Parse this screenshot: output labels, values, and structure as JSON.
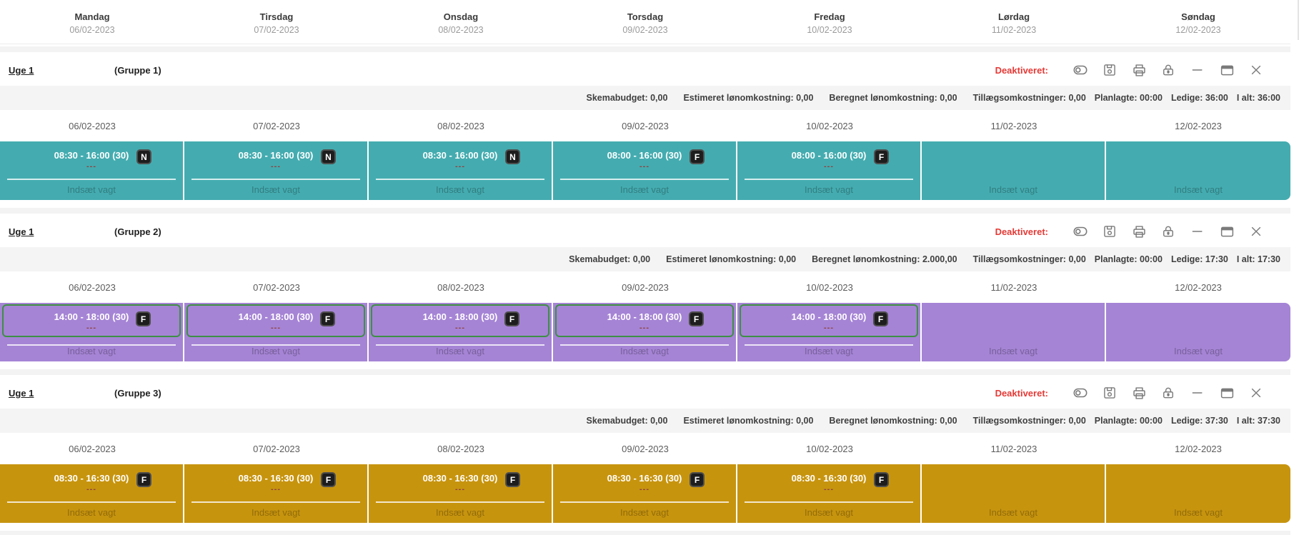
{
  "colors": {
    "group1_band": "#44acb0",
    "group2_band": "#a584d5",
    "group3_band": "#c7940e",
    "card_border_green": "#3e8f44",
    "status_red": "#e53935",
    "icon_gray": "#7a7a7a"
  },
  "day_header": {
    "days": [
      {
        "name": "Mandag",
        "date": "06/02-2023"
      },
      {
        "name": "Tirsdag",
        "date": "07/02-2023"
      },
      {
        "name": "Onsdag",
        "date": "08/02-2023"
      },
      {
        "name": "Torsdag",
        "date": "09/02-2023"
      },
      {
        "name": "Fredag",
        "date": "10/02-2023"
      },
      {
        "name": "Lørdag",
        "date": "11/02-2023"
      },
      {
        "name": "Søndag",
        "date": "12/02-2023"
      }
    ]
  },
  "header_icons": [
    {
      "name": "toggle-icon"
    },
    {
      "name": "save-icon"
    },
    {
      "name": "print-icon"
    },
    {
      "name": "lock-icon"
    },
    {
      "name": "minimize-icon"
    },
    {
      "name": "window-icon"
    },
    {
      "name": "close-icon"
    }
  ],
  "groups": [
    {
      "week_label": "Uge 1",
      "group_label": "(Gruppe 1)",
      "status_label": "Deaktiveret:",
      "band_color": "#44acb0",
      "budget_items": [
        "Skemabudget: 0,00",
        "Estimeret lønomkostning: 0,00",
        "Beregnet lønomkostning: 0,00",
        "Tillægsomkostninger: 0,00",
        "Planlagte: 00:00",
        "Ledige: 36:00",
        "I alt: 36:00"
      ],
      "dates": [
        "06/02-2023",
        "07/02-2023",
        "08/02-2023",
        "09/02-2023",
        "10/02-2023",
        "11/02-2023",
        "12/02-2023"
      ],
      "cells": [
        {
          "time": "08:30 - 16:00 (30)",
          "badge": "N",
          "dots": "---",
          "insert_label": "Indsæt vagt"
        },
        {
          "time": "08:30 - 16:00 (30)",
          "badge": "N",
          "dots": "---",
          "insert_label": "Indsæt vagt"
        },
        {
          "time": "08:30 - 16:00 (30)",
          "badge": "N",
          "dots": "---",
          "insert_label": "Indsæt vagt"
        },
        {
          "time": "08:00 - 16:00 (30)",
          "badge": "F",
          "dots": "---",
          "insert_label": "Indsæt vagt"
        },
        {
          "time": "08:00 - 16:00 (30)",
          "badge": "F",
          "dots": "---",
          "insert_label": "Indsæt vagt"
        },
        {
          "insert_label": "Indsæt vagt"
        },
        {
          "insert_label": "Indsæt vagt"
        }
      ]
    },
    {
      "week_label": "Uge 1",
      "group_label": "(Gruppe 2)",
      "status_label": "Deaktiveret:",
      "band_color": "#a584d5",
      "card_border": "#3e8f44",
      "budget_items": [
        "Skemabudget: 0,00",
        "Estimeret lønomkostning: 0,00",
        "Beregnet lønomkostning: 2.000,00",
        "Tillægsomkostninger: 0,00",
        "Planlagte: 00:00",
        "Ledige: 17:30",
        "I alt: 17:30"
      ],
      "dates": [
        "06/02-2023",
        "07/02-2023",
        "08/02-2023",
        "09/02-2023",
        "10/02-2023",
        "11/02-2023",
        "12/02-2023"
      ],
      "cells": [
        {
          "time": "14:00 - 18:00 (30)",
          "badge": "F",
          "dots": "---",
          "insert_label": "Indsæt vagt"
        },
        {
          "time": "14:00 - 18:00 (30)",
          "badge": "F",
          "dots": "---",
          "insert_label": "Indsæt vagt"
        },
        {
          "time": "14:00 - 18:00 (30)",
          "badge": "F",
          "dots": "---",
          "insert_label": "Indsæt vagt"
        },
        {
          "time": "14:00 - 18:00 (30)",
          "badge": "F",
          "dots": "---",
          "insert_label": "Indsæt vagt"
        },
        {
          "time": "14:00 - 18:00 (30)",
          "badge": "F",
          "dots": "---",
          "insert_label": "Indsæt vagt"
        },
        {
          "insert_label": "Indsæt vagt"
        },
        {
          "insert_label": "Indsæt vagt"
        }
      ]
    },
    {
      "week_label": "Uge 1",
      "group_label": "(Gruppe 3)",
      "status_label": "Deaktiveret:",
      "band_color": "#c7940e",
      "budget_items": [
        "Skemabudget: 0,00",
        "Estimeret lønomkostning: 0,00",
        "Beregnet lønomkostning: 0,00",
        "Tillægsomkostninger: 0,00",
        "Planlagte: 00:00",
        "Ledige: 37:30",
        "I alt: 37:30"
      ],
      "dates": [
        "06/02-2023",
        "07/02-2023",
        "08/02-2023",
        "09/02-2023",
        "10/02-2023",
        "11/02-2023",
        "12/02-2023"
      ],
      "cells": [
        {
          "time": "08:30 - 16:30 (30)",
          "badge": "F",
          "dots": "---",
          "insert_label": "Indsæt vagt"
        },
        {
          "time": "08:30 - 16:30 (30)",
          "badge": "F",
          "dots": "---",
          "insert_label": "Indsæt vagt"
        },
        {
          "time": "08:30 - 16:30 (30)",
          "badge": "F",
          "dots": "---",
          "insert_label": "Indsæt vagt"
        },
        {
          "time": "08:30 - 16:30 (30)",
          "badge": "F",
          "dots": "---",
          "insert_label": "Indsæt vagt"
        },
        {
          "time": "08:30 - 16:30 (30)",
          "badge": "F",
          "dots": "---",
          "insert_label": "Indsæt vagt"
        },
        {
          "insert_label": "Indsæt vagt"
        },
        {
          "insert_label": "Indsæt vagt"
        }
      ]
    }
  ]
}
